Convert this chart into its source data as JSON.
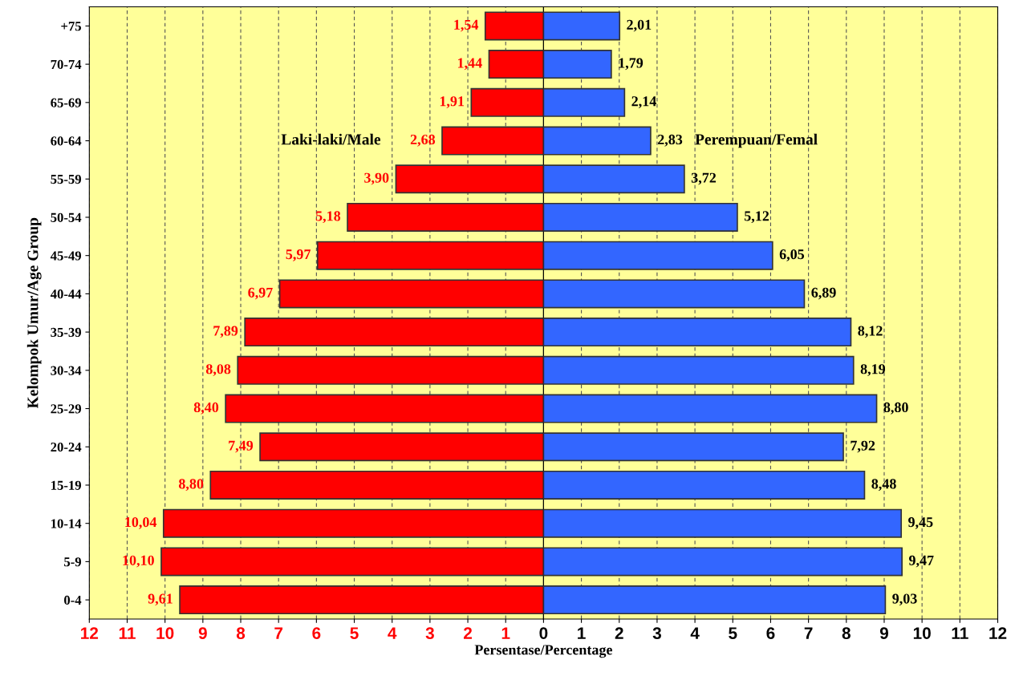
{
  "chart_data": [
    {
      "type": "bar",
      "orientation": "horizontal",
      "ylabel": "Kelompok Umur/Age Group",
      "categories": [
        "+75",
        "70-74",
        "65-69",
        "60-64",
        "55-59",
        "50-54",
        "45-49",
        "40-44",
        "35-39",
        "30-34",
        "25-29",
        "20-24",
        "15-19",
        "10-14",
        "5-9",
        "0-4"
      ],
      "series": [
        {
          "name": "Laki-laki/Male",
          "color": "#ff0000",
          "values": [
            1.54,
            1.44,
            1.91,
            2.68,
            3.9,
            5.18,
            5.97,
            6.97,
            7.89,
            8.08,
            8.4,
            7.49,
            8.8,
            10.04,
            10.1,
            9.61
          ],
          "value_labels": [
            "1,54",
            "1,44",
            "1,91",
            "2,68",
            "3,90",
            "5,18",
            "5,97",
            "6,97",
            "7,89",
            "8,08",
            "8,40",
            "7,49",
            "8,80",
            "10,04",
            "10,10",
            "9,61"
          ]
        }
      ],
      "xlim": [
        12,
        0
      ],
      "xticks": [
        12,
        11,
        10,
        9,
        8,
        7,
        6,
        5,
        4,
        3,
        2,
        1
      ],
      "grid": "x"
    },
    {
      "type": "bar",
      "orientation": "horizontal",
      "xlabel": "Persentase/Percentage",
      "tick_labels": "x",
      "categories": [
        null,
        null,
        null,
        null,
        null,
        null,
        null,
        null,
        null,
        null,
        null,
        null,
        null,
        null,
        null,
        null
      ],
      "series": [
        {
          "name": "Perempuan/Femal",
          "color": "#3366ff",
          "values": [
            2.01,
            1.79,
            2.14,
            2.83,
            3.72,
            5.12,
            6.05,
            6.89,
            8.12,
            8.19,
            8.8,
            7.92,
            8.48,
            9.45,
            9.47,
            9.03
          ],
          "value_labels": [
            "2,01",
            "1,79",
            "2,14",
            "2,83",
            "3,72",
            "5,12",
            "6,05",
            "6,89",
            "8,12",
            "8,19",
            "8,80",
            "7,92",
            "8,48",
            "9,45",
            "9,47",
            "9,03"
          ]
        }
      ],
      "xlim": [
        0,
        12
      ],
      "xticks": [
        0,
        1,
        2,
        3,
        4,
        5,
        6,
        7,
        8,
        9,
        10,
        11,
        12
      ],
      "grid": "x"
    }
  ]
}
